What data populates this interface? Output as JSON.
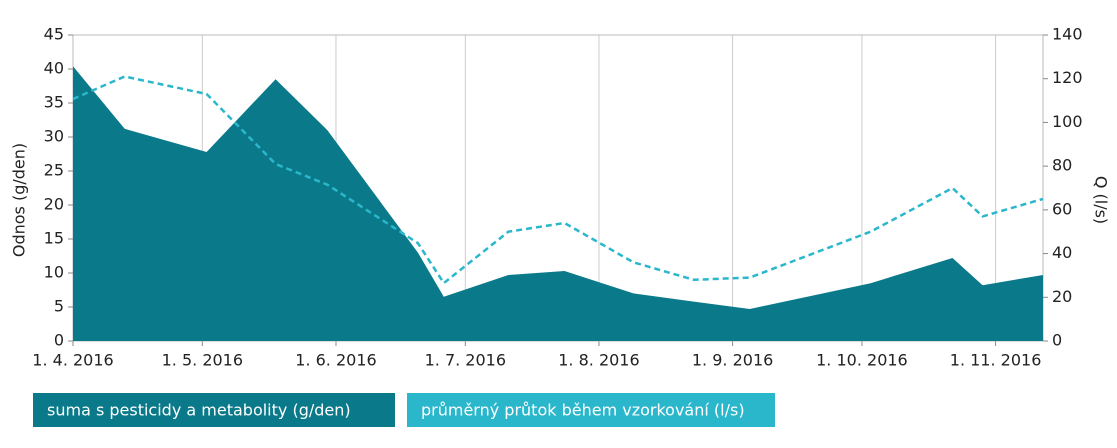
{
  "chart_data": {
    "type": "combo",
    "x": [
      "2016-04-01",
      "2016-04-13",
      "2016-05-02",
      "2016-05-18",
      "2016-05-30",
      "2016-06-20",
      "2016-06-26",
      "2016-07-11",
      "2016-07-24",
      "2016-08-09",
      "2016-08-23",
      "2016-09-05",
      "2016-10-03",
      "2016-10-22",
      "2016-10-29",
      "2016-11-12"
    ],
    "series": [
      {
        "name": "suma s pesticidy a metabolity (g/den)",
        "type": "area",
        "color": "#0a7a8a",
        "axis": "y",
        "values": [
          40.4,
          31.2,
          27.8,
          38.5,
          31,
          13,
          6.5,
          9.7,
          10.3,
          7,
          5.8,
          4.7,
          8.5,
          12.2,
          8.2,
          9.7
        ]
      },
      {
        "name": "průměrný průtok během vzorkování (l/s)",
        "type": "line",
        "dashed": true,
        "color": "#2ab7cc",
        "axis": "y2",
        "values": [
          110.7,
          121,
          113,
          81,
          71.5,
          44.8,
          26.5,
          50,
          54,
          36,
          28,
          29,
          50,
          70,
          57,
          65
        ]
      }
    ],
    "y_label": "Odnos (g/den)",
    "y2_label": "Q (l/s)",
    "xlim": [
      "2016-04-01",
      "2016-11-12"
    ],
    "xticks": [
      {
        "value": "2016-04-01",
        "label": "1. 4. 2016"
      },
      {
        "value": "2016-05-01",
        "label": "1. 5. 2016"
      },
      {
        "value": "2016-06-01",
        "label": "1. 6. 2016"
      },
      {
        "value": "2016-07-01",
        "label": "1. 7. 2016"
      },
      {
        "value": "2016-08-01",
        "label": "1. 8. 2016"
      },
      {
        "value": "2016-09-01",
        "label": "1. 9. 2016"
      },
      {
        "value": "2016-10-01",
        "label": "1. 10. 2016"
      },
      {
        "value": "2016-11-01",
        "label": "1. 11. 2016"
      }
    ],
    "ylim": [
      0,
      45
    ],
    "yticks": [
      0,
      5,
      10,
      15,
      20,
      25,
      30,
      35,
      40,
      45
    ],
    "y2lim": [
      0,
      140
    ],
    "y2ticks": [
      0,
      20,
      40,
      60,
      80,
      100,
      120,
      140
    ],
    "grid": "x"
  }
}
